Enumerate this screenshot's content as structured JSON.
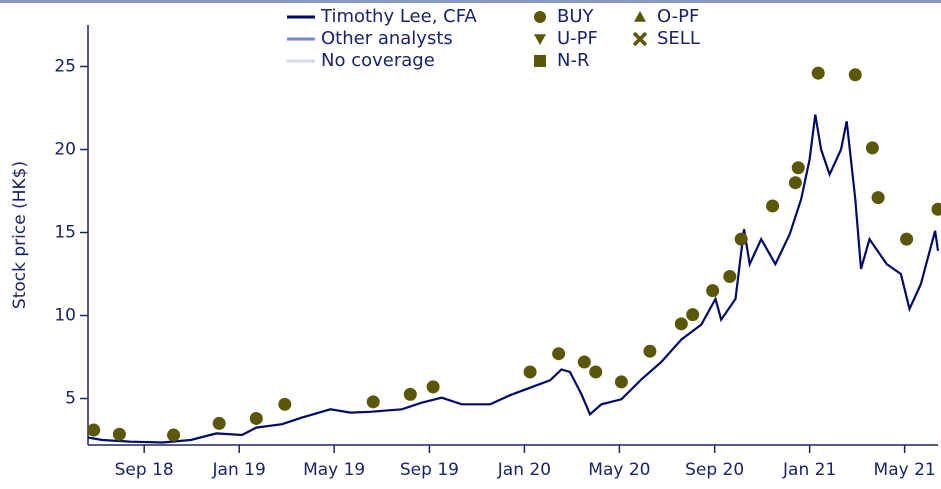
{
  "chart_data": {
    "type": "line",
    "y_label": "Stock price (HK$)",
    "xlim": [
      2018.47,
      2021.45
    ],
    "ylim": [
      2.2,
      27.5
    ],
    "yticks": [
      5,
      10,
      15,
      20,
      25
    ],
    "xticks": [
      {
        "value": 2018.667,
        "label": "Sep 18"
      },
      {
        "value": 2019.0,
        "label": "Jan 19"
      },
      {
        "value": 2019.333,
        "label": "May 19"
      },
      {
        "value": 2019.667,
        "label": "Sep 19"
      },
      {
        "value": 2020.0,
        "label": "Jan 20"
      },
      {
        "value": 2020.333,
        "label": "May 20"
      },
      {
        "value": 2020.667,
        "label": "Sep 20"
      },
      {
        "value": 2021.0,
        "label": "Jan 21"
      },
      {
        "value": 2021.333,
        "label": "May 21"
      }
    ],
    "series": [
      {
        "name": "Timothy Lee, CFA",
        "color": "#000c66",
        "x": [
          2018.47,
          2018.52,
          2018.62,
          2018.73,
          2018.83,
          2018.92,
          2019.01,
          2019.06,
          2019.15,
          2019.22,
          2019.32,
          2019.39,
          2019.46,
          2019.57,
          2019.64,
          2019.71,
          2019.78,
          2019.88,
          2019.95,
          2020.02,
          2020.09,
          2020.13,
          2020.16,
          2020.2,
          2020.23,
          2020.27,
          2020.34,
          2020.41,
          2020.48,
          2020.55,
          2020.62,
          2020.67,
          2020.69,
          2020.74,
          2020.77,
          2020.79,
          2020.83,
          2020.88,
          2020.93,
          2020.97,
          2021.0,
          2021.02,
          2021.04,
          2021.07,
          2021.11,
          2021.13,
          2021.16,
          2021.18,
          2021.21,
          2021.27,
          2021.32,
          2021.35,
          2021.39,
          2021.44,
          2021.45
        ],
        "values": [
          2.65,
          2.5,
          2.4,
          2.35,
          2.5,
          2.9,
          2.8,
          3.25,
          3.45,
          3.85,
          4.35,
          4.15,
          4.2,
          4.35,
          4.75,
          5.05,
          4.65,
          4.65,
          5.2,
          5.65,
          6.1,
          6.75,
          6.6,
          5.25,
          4.05,
          4.65,
          4.95,
          6.15,
          7.2,
          8.55,
          9.45,
          11.0,
          9.75,
          11.0,
          15.2,
          13.1,
          14.6,
          13.1,
          14.9,
          17.0,
          19.4,
          22.1,
          20.0,
          18.5,
          20.0,
          21.7,
          17.0,
          12.8,
          14.6,
          13.1,
          12.5,
          10.4,
          11.9,
          15.1,
          13.9
        ]
      }
    ],
    "legend_lines": [
      {
        "name": "Other analysts",
        "color": "#7b86c8"
      },
      {
        "name": "No coverage",
        "color": "#d3d8ee"
      }
    ],
    "markers": [
      {
        "name": "BUY",
        "shape": "circle",
        "color": "#5a5708",
        "x": [
          2018.49,
          2018.58,
          2018.77,
          2018.93,
          2019.06,
          2019.16,
          2019.47,
          2019.6,
          2019.68,
          2020.02,
          2020.12,
          2020.21,
          2020.25,
          2020.34,
          2020.44,
          2020.55,
          2020.59,
          2020.66,
          2020.72,
          2020.76,
          2020.87,
          2020.95,
          2020.96,
          2021.03,
          2021.16,
          2021.22,
          2021.24,
          2021.34,
          2021.45
        ],
        "values": [
          3.1,
          2.85,
          2.8,
          3.5,
          3.8,
          4.65,
          4.8,
          5.25,
          5.7,
          6.6,
          7.7,
          7.2,
          6.6,
          6.0,
          7.85,
          9.5,
          10.05,
          11.5,
          12.35,
          14.6,
          16.6,
          18.0,
          18.9,
          24.6,
          24.5,
          20.1,
          17.1,
          14.6,
          16.4
        ]
      },
      {
        "name": "U-PF",
        "shape": "triangle-down",
        "color": "#5a5708"
      },
      {
        "name": "N-R",
        "shape": "square",
        "color": "#5a5708"
      },
      {
        "name": "O-PF",
        "shape": "triangle-up",
        "color": "#5a5708"
      },
      {
        "name": "SELL",
        "shape": "cross",
        "color": "#5a5708"
      }
    ]
  }
}
